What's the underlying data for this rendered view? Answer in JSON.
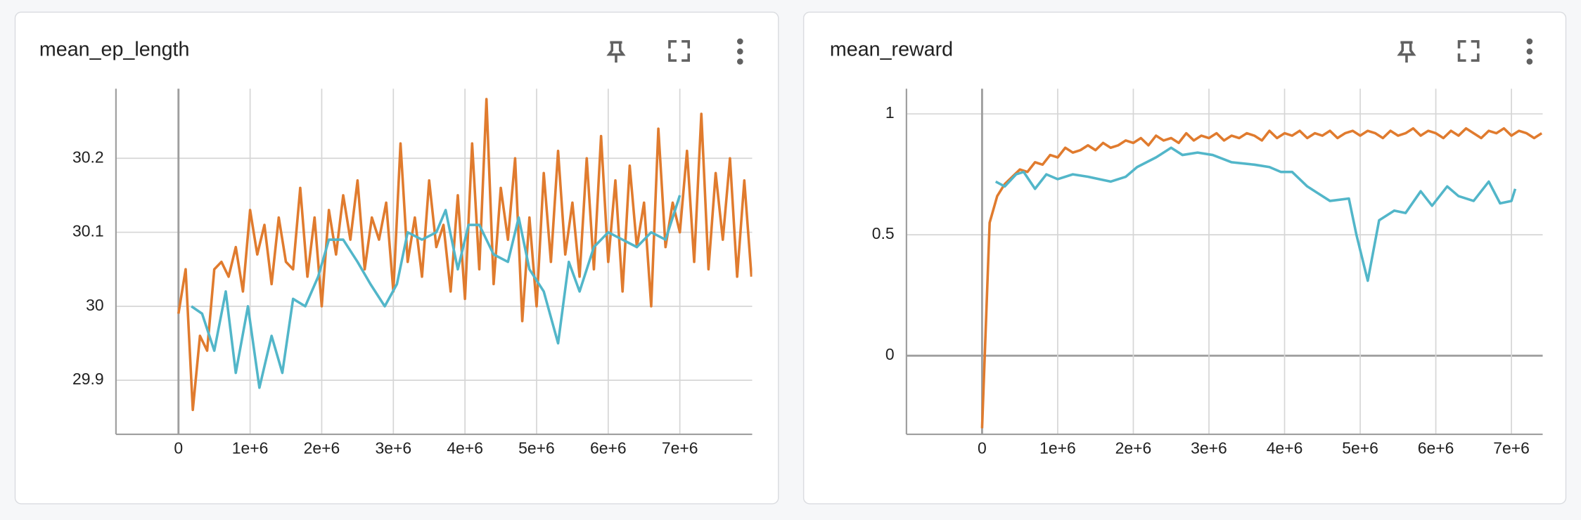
{
  "chart_data": [
    {
      "type": "line",
      "title": "mean_ep_length",
      "xlim": [
        -873000,
        8010000
      ],
      "xticks": [
        0,
        {
          "value": 1000000,
          "label": "1e+6"
        },
        {
          "value": 2000000,
          "label": "2e+6"
        },
        {
          "value": 3000000,
          "label": "3e+6"
        },
        {
          "value": 4000000,
          "label": "4e+6"
        },
        {
          "value": 5000000,
          "label": "5e+6"
        },
        {
          "value": 6000000,
          "label": "6e+6"
        },
        {
          "value": 7000000,
          "label": "7e+6"
        }
      ],
      "ylim": [
        29.827,
        30.294
      ],
      "yticks": [
        29.9,
        30,
        30.1,
        30.2
      ],
      "grid": true,
      "series": [
        {
          "color": "#e07b2e",
          "x": [
            0,
            100000,
            200000,
            300000,
            400000,
            500000,
            600000,
            700000,
            800000,
            900000,
            1000000,
            1100000,
            1200000,
            1300000,
            1400000,
            1500000,
            1600000,
            1700000,
            1800000,
            1900000,
            2000000,
            2100000,
            2200000,
            2300000,
            2400000,
            2500000,
            2600000,
            2700000,
            2800000,
            2900000,
            3000000,
            3100000,
            3200000,
            3300000,
            3400000,
            3500000,
            3600000,
            3700000,
            3800000,
            3900000,
            4000000,
            4100000,
            4200000,
            4300000,
            4400000,
            4500000,
            4600000,
            4700000,
            4800000,
            4900000,
            5000000,
            5100000,
            5200000,
            5300000,
            5400000,
            5500000,
            5600000,
            5700000,
            5800000,
            5900000,
            6000000,
            6100000,
            6200000,
            6300000,
            6400000,
            6500000,
            6600000,
            6700000,
            6800000,
            6900000,
            7000000,
            7100000,
            7200000,
            7300000,
            7400000,
            7500000,
            7600000,
            7700000,
            7800000,
            7900000,
            8000000
          ],
          "values": [
            29.99,
            30.05,
            29.86,
            29.96,
            29.94,
            30.05,
            30.06,
            30.04,
            30.08,
            30.02,
            30.13,
            30.07,
            30.11,
            30.03,
            30.12,
            30.06,
            30.05,
            30.16,
            30.04,
            30.12,
            30.0,
            30.13,
            30.07,
            30.15,
            30.09,
            30.17,
            30.05,
            30.12,
            30.09,
            30.14,
            30.02,
            30.22,
            30.06,
            30.12,
            30.04,
            30.17,
            30.08,
            30.11,
            30.02,
            30.15,
            30.01,
            30.22,
            30.05,
            30.28,
            30.03,
            30.16,
            30.09,
            30.2,
            29.98,
            30.12,
            30.0,
            30.18,
            30.06,
            30.21,
            30.07,
            30.14,
            30.04,
            30.2,
            30.05,
            30.23,
            30.06,
            30.17,
            30.02,
            30.19,
            30.08,
            30.14,
            30.0,
            30.24,
            30.08,
            30.14,
            30.1,
            30.21,
            30.06,
            30.26,
            30.05,
            30.18,
            30.09,
            30.2,
            30.04,
            30.17,
            30.04
          ]
        },
        {
          "color": "#52b6c9",
          "x": [
            180000,
            330000,
            500000,
            660000,
            800000,
            970000,
            1130000,
            1300000,
            1450000,
            1600000,
            1770000,
            1950000,
            2100000,
            2300000,
            2500000,
            2680000,
            2880000,
            3050000,
            3200000,
            3400000,
            3600000,
            3730000,
            3900000,
            4050000,
            4200000,
            4400000,
            4600000,
            4750000,
            4900000,
            5100000,
            5300000,
            5450000,
            5600000,
            5800000,
            6000000,
            6200000,
            6400000,
            6600000,
            6800000,
            7000000
          ],
          "values": [
            30.0,
            29.99,
            29.94,
            30.02,
            29.91,
            30.0,
            29.89,
            29.96,
            29.91,
            30.01,
            30.0,
            30.04,
            30.09,
            30.09,
            30.06,
            30.03,
            30.0,
            30.03,
            30.1,
            30.09,
            30.1,
            30.13,
            30.05,
            30.11,
            30.11,
            30.07,
            30.06,
            30.12,
            30.05,
            30.02,
            29.95,
            30.06,
            30.02,
            30.08,
            30.1,
            30.09,
            30.08,
            30.1,
            30.09,
            30.15
          ]
        }
      ]
    },
    {
      "type": "line",
      "title": "mean_reward",
      "xlim": [
        -1000000,
        7413000
      ],
      "xticks": [
        0,
        {
          "value": 1000000,
          "label": "1e+6"
        },
        {
          "value": 2000000,
          "label": "2e+6"
        },
        {
          "value": 3000000,
          "label": "3e+6"
        },
        {
          "value": 4000000,
          "label": "4e+6"
        },
        {
          "value": 5000000,
          "label": "5e+6"
        },
        {
          "value": 6000000,
          "label": "6e+6"
        },
        {
          "value": 7000000,
          "label": "7e+6"
        }
      ],
      "ylim": [
        -0.325,
        1.104
      ],
      "yticks": [
        0,
        0.5,
        1
      ],
      "grid": true,
      "series": [
        {
          "color": "#e07b2e",
          "x": [
            0,
            100000,
            200000,
            300000,
            400000,
            500000,
            600000,
            700000,
            800000,
            900000,
            1000000,
            1100000,
            1200000,
            1300000,
            1400000,
            1500000,
            1600000,
            1700000,
            1800000,
            1900000,
            2000000,
            2100000,
            2200000,
            2300000,
            2400000,
            2500000,
            2600000,
            2700000,
            2800000,
            2900000,
            3000000,
            3100000,
            3200000,
            3300000,
            3400000,
            3500000,
            3600000,
            3700000,
            3800000,
            3900000,
            4000000,
            4100000,
            4200000,
            4300000,
            4400000,
            4500000,
            4600000,
            4700000,
            4800000,
            4900000,
            5000000,
            5100000,
            5200000,
            5300000,
            5400000,
            5500000,
            5600000,
            5700000,
            5800000,
            5900000,
            6000000,
            6100000,
            6200000,
            6300000,
            6400000,
            6500000,
            6600000,
            6700000,
            6800000,
            6900000,
            7000000,
            7100000,
            7200000,
            7300000,
            7400000
          ],
          "values": [
            -0.3,
            0.55,
            0.66,
            0.71,
            0.74,
            0.77,
            0.76,
            0.8,
            0.79,
            0.83,
            0.82,
            0.86,
            0.84,
            0.85,
            0.87,
            0.85,
            0.88,
            0.86,
            0.87,
            0.89,
            0.88,
            0.9,
            0.87,
            0.91,
            0.89,
            0.9,
            0.88,
            0.92,
            0.89,
            0.91,
            0.9,
            0.92,
            0.89,
            0.91,
            0.9,
            0.92,
            0.91,
            0.89,
            0.93,
            0.9,
            0.92,
            0.91,
            0.93,
            0.9,
            0.92,
            0.91,
            0.93,
            0.9,
            0.92,
            0.93,
            0.91,
            0.93,
            0.92,
            0.9,
            0.93,
            0.91,
            0.92,
            0.94,
            0.91,
            0.93,
            0.92,
            0.9,
            0.93,
            0.91,
            0.94,
            0.92,
            0.9,
            0.93,
            0.92,
            0.94,
            0.91,
            0.93,
            0.92,
            0.9,
            0.92
          ]
        },
        {
          "color": "#52b6c9",
          "x": [
            180000,
            300000,
            450000,
            550000,
            700000,
            850000,
            1000000,
            1200000,
            1400000,
            1700000,
            1900000,
            2050000,
            2300000,
            2500000,
            2650000,
            2850000,
            3050000,
            3300000,
            3600000,
            3800000,
            3950000,
            4100000,
            4300000,
            4450000,
            4600000,
            4850000,
            4950000,
            5100000,
            5250000,
            5450000,
            5600000,
            5800000,
            5950000,
            6150000,
            6300000,
            6500000,
            6700000,
            6850000,
            7000000,
            7050000
          ],
          "values": [
            0.72,
            0.7,
            0.75,
            0.76,
            0.69,
            0.75,
            0.73,
            0.75,
            0.74,
            0.72,
            0.74,
            0.78,
            0.82,
            0.86,
            0.83,
            0.84,
            0.83,
            0.8,
            0.79,
            0.78,
            0.76,
            0.76,
            0.7,
            0.67,
            0.64,
            0.65,
            0.5,
            0.31,
            0.56,
            0.6,
            0.59,
            0.68,
            0.62,
            0.7,
            0.66,
            0.64,
            0.72,
            0.63,
            0.64,
            0.69
          ]
        }
      ]
    }
  ]
}
